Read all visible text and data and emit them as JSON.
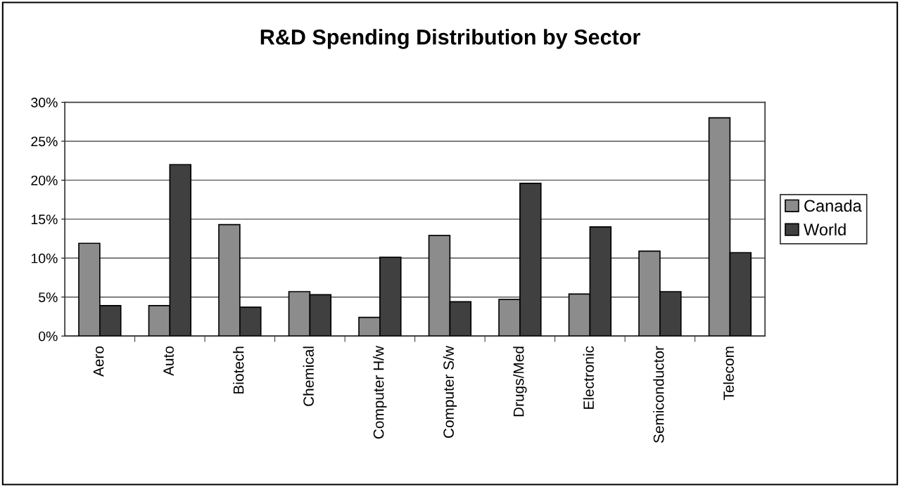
{
  "chart_data": {
    "type": "bar",
    "title": "R&D Spending Distribution by Sector",
    "categories": [
      "Aero",
      "Auto",
      "Biotech",
      "Chemical",
      "Computer H/w",
      "Computer S/w",
      "Drugs/Med",
      "Electronic",
      "Semiconductor",
      "Telecom"
    ],
    "series": [
      {
        "name": "Canada",
        "color": "#8c8c8c",
        "values": [
          11.9,
          3.9,
          14.3,
          5.7,
          2.4,
          12.9,
          4.7,
          5.4,
          10.9,
          28.0
        ]
      },
      {
        "name": "World",
        "color": "#404040",
        "values": [
          3.9,
          22.0,
          3.7,
          5.3,
          10.1,
          4.4,
          19.6,
          14.0,
          5.7,
          10.7
        ]
      }
    ],
    "ylim": [
      0,
      30
    ],
    "yticks": [
      {
        "value": 0,
        "label": "0%"
      },
      {
        "value": 5,
        "label": "5%"
      },
      {
        "value": 10,
        "label": "10%"
      },
      {
        "value": 15,
        "label": "15%"
      },
      {
        "value": 20,
        "label": "20%"
      },
      {
        "value": 25,
        "label": "25%"
      },
      {
        "value": 30,
        "label": "30%"
      }
    ],
    "grid": "y",
    "legend": "right"
  }
}
